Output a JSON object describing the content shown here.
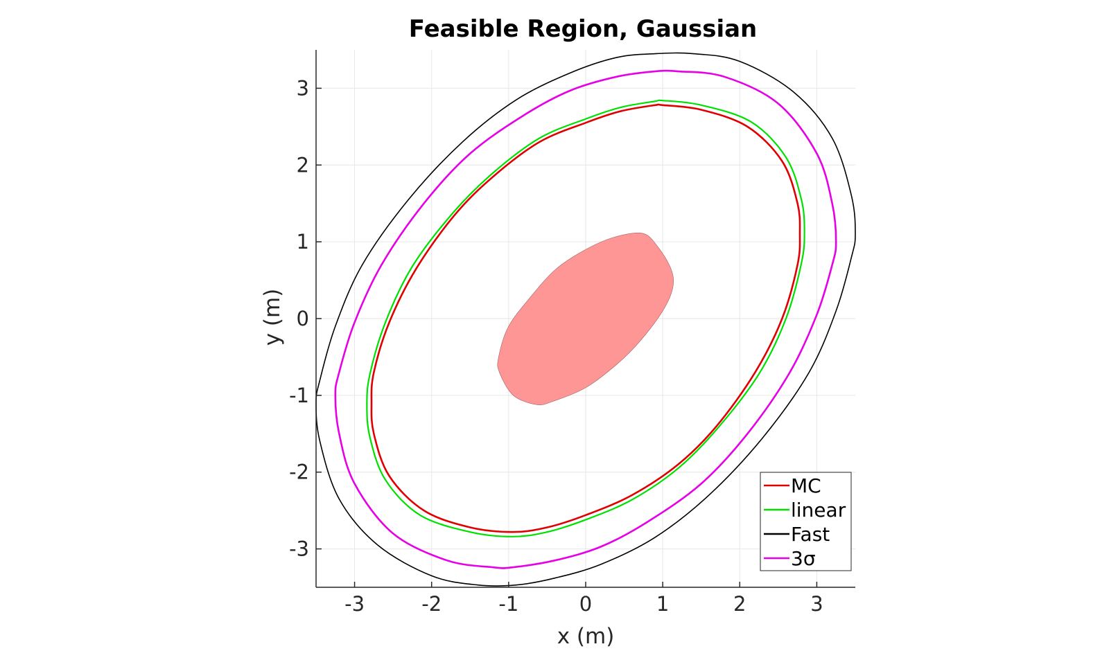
{
  "chart_data": {
    "type": "line",
    "title": "Feasible Region, Gaussian",
    "xlabel": "x (m)",
    "ylabel": "y (m)",
    "xlim": [
      -3.5,
      3.5
    ],
    "ylim": [
      -3.5,
      3.5
    ],
    "xticks": [
      -3,
      -2,
      -1,
      0,
      1,
      2,
      3
    ],
    "yticks": [
      -3,
      -2,
      -1,
      0,
      1,
      2,
      3
    ],
    "xtick_labels": [
      "-3",
      "-2",
      "-1",
      "0",
      "1",
      "2",
      "3"
    ],
    "ytick_labels": [
      "-3",
      "-2",
      "-1",
      "0",
      "1",
      "2",
      "3"
    ],
    "grid": true,
    "legend_position": "bottom-right",
    "filled_region": {
      "color": "#ff9696",
      "points": [
        [
          0.74,
          1.11
        ],
        [
          0.94,
          0.93
        ],
        [
          1.11,
          0.64
        ],
        [
          1.13,
          0.4
        ],
        [
          1.0,
          0.1
        ],
        [
          0.7,
          -0.3
        ],
        [
          0.4,
          -0.6
        ],
        [
          0.0,
          -0.9
        ],
        [
          -0.43,
          -1.08
        ],
        [
          -0.64,
          -1.12
        ],
        [
          -0.94,
          -1.0
        ],
        [
          -1.12,
          -0.7
        ],
        [
          -1.13,
          -0.5
        ],
        [
          -1.0,
          -0.1
        ],
        [
          -0.7,
          0.3
        ],
        [
          -0.38,
          0.65
        ],
        [
          0.0,
          0.9
        ],
        [
          0.37,
          1.06
        ]
      ]
    },
    "series": [
      {
        "name": "MC",
        "color": "#e00000",
        "points": [
          [
            0.9,
            2.78
          ],
          [
            0.45,
            2.7
          ],
          [
            0.0,
            2.55
          ],
          [
            -0.6,
            2.3
          ],
          [
            -1.2,
            1.85
          ],
          [
            -1.7,
            1.35
          ],
          [
            -2.2,
            0.65
          ],
          [
            -2.55,
            -0.05
          ],
          [
            -2.75,
            -0.7
          ],
          [
            -2.78,
            -1.1
          ],
          [
            -2.75,
            -1.5
          ],
          [
            -2.55,
            -2.05
          ],
          [
            -2.1,
            -2.5
          ],
          [
            -1.5,
            -2.72
          ],
          [
            -0.95,
            -2.78
          ],
          [
            -0.5,
            -2.72
          ],
          [
            0.0,
            -2.56
          ],
          [
            0.6,
            -2.3
          ],
          [
            1.2,
            -1.9
          ],
          [
            1.7,
            -1.4
          ],
          [
            2.2,
            -0.7
          ],
          [
            2.55,
            0.0
          ],
          [
            2.75,
            0.7
          ],
          [
            2.78,
            1.1
          ],
          [
            2.75,
            1.5
          ],
          [
            2.55,
            2.05
          ],
          [
            2.1,
            2.5
          ],
          [
            1.5,
            2.72
          ],
          [
            1.0,
            2.78
          ],
          [
            0.9,
            2.78
          ]
        ]
      },
      {
        "name": "linear",
        "color": "#00e000",
        "points": [
          [
            0.9,
            2.83
          ],
          [
            0.45,
            2.75
          ],
          [
            0.0,
            2.6
          ],
          [
            -0.6,
            2.35
          ],
          [
            -1.2,
            1.9
          ],
          [
            -1.72,
            1.38
          ],
          [
            -2.25,
            0.68
          ],
          [
            -2.6,
            -0.05
          ],
          [
            -2.8,
            -0.72
          ],
          [
            -2.84,
            -1.12
          ],
          [
            -2.8,
            -1.55
          ],
          [
            -2.6,
            -2.1
          ],
          [
            -2.15,
            -2.56
          ],
          [
            -1.5,
            -2.78
          ],
          [
            -0.95,
            -2.84
          ],
          [
            -0.5,
            -2.78
          ],
          [
            0.0,
            -2.62
          ],
          [
            0.6,
            -2.36
          ],
          [
            1.2,
            -1.95
          ],
          [
            1.72,
            -1.42
          ],
          [
            2.25,
            -0.72
          ],
          [
            2.6,
            0.0
          ],
          [
            2.8,
            0.72
          ],
          [
            2.84,
            1.12
          ],
          [
            2.8,
            1.55
          ],
          [
            2.6,
            2.1
          ],
          [
            2.15,
            2.56
          ],
          [
            1.5,
            2.78
          ],
          [
            1.0,
            2.84
          ],
          [
            0.9,
            2.83
          ]
        ]
      },
      {
        "name": "Fast",
        "color": "#000000",
        "points": [
          [
            0.9,
            3.45
          ],
          [
            0.4,
            3.4
          ],
          [
            -0.2,
            3.2
          ],
          [
            -0.9,
            2.85
          ],
          [
            -1.6,
            2.3
          ],
          [
            -2.3,
            1.55
          ],
          [
            -2.9,
            0.7
          ],
          [
            -3.25,
            -0.1
          ],
          [
            -3.45,
            -0.8
          ],
          [
            -3.5,
            -1.1
          ],
          [
            -3.45,
            -1.6
          ],
          [
            -3.2,
            -2.35
          ],
          [
            -2.7,
            -2.95
          ],
          [
            -2.0,
            -3.35
          ],
          [
            -1.4,
            -3.47
          ],
          [
            -0.9,
            -3.47
          ],
          [
            -0.4,
            -3.38
          ],
          [
            0.2,
            -3.2
          ],
          [
            0.9,
            -2.85
          ],
          [
            1.6,
            -2.3
          ],
          [
            2.3,
            -1.55
          ],
          [
            2.9,
            -0.7
          ],
          [
            3.25,
            0.1
          ],
          [
            3.45,
            0.8
          ],
          [
            3.5,
            1.1
          ],
          [
            3.45,
            1.6
          ],
          [
            3.2,
            2.35
          ],
          [
            2.7,
            2.95
          ],
          [
            2.0,
            3.35
          ],
          [
            1.4,
            3.45
          ],
          [
            0.9,
            3.45
          ]
        ]
      },
      {
        "name": "3σ",
        "color": "#e600e6",
        "points": [
          [
            0.9,
            3.22
          ],
          [
            0.4,
            3.15
          ],
          [
            -0.2,
            2.97
          ],
          [
            -0.8,
            2.65
          ],
          [
            -1.5,
            2.15
          ],
          [
            -2.1,
            1.5
          ],
          [
            -2.65,
            0.7
          ],
          [
            -3.0,
            -0.05
          ],
          [
            -3.2,
            -0.7
          ],
          [
            -3.25,
            -1.0
          ],
          [
            -3.2,
            -1.5
          ],
          [
            -3.0,
            -2.15
          ],
          [
            -2.5,
            -2.8
          ],
          [
            -1.8,
            -3.15
          ],
          [
            -1.2,
            -3.24
          ],
          [
            -0.95,
            -3.24
          ],
          [
            -0.4,
            -3.15
          ],
          [
            0.2,
            -2.97
          ],
          [
            0.8,
            -2.65
          ],
          [
            1.5,
            -2.15
          ],
          [
            2.1,
            -1.5
          ],
          [
            2.65,
            -0.7
          ],
          [
            3.0,
            0.05
          ],
          [
            3.2,
            0.7
          ],
          [
            3.25,
            1.0
          ],
          [
            3.2,
            1.5
          ],
          [
            3.0,
            2.15
          ],
          [
            2.5,
            2.8
          ],
          [
            1.8,
            3.15
          ],
          [
            1.2,
            3.22
          ],
          [
            0.9,
            3.22
          ]
        ]
      }
    ]
  }
}
